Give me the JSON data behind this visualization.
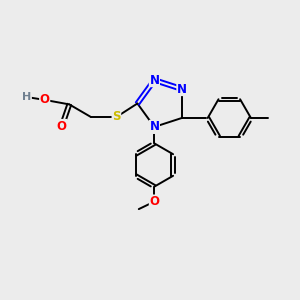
{
  "background_color": "#ececec",
  "bond_color": "#000000",
  "atom_colors": {
    "N": "#0000ff",
    "O": "#ff0000",
    "S": "#ccbb00",
    "H": "#708090",
    "C": "#000000"
  },
  "font_size": 8.5,
  "lw": 1.4,
  "figsize": [
    3.0,
    3.0
  ],
  "dpi": 100
}
